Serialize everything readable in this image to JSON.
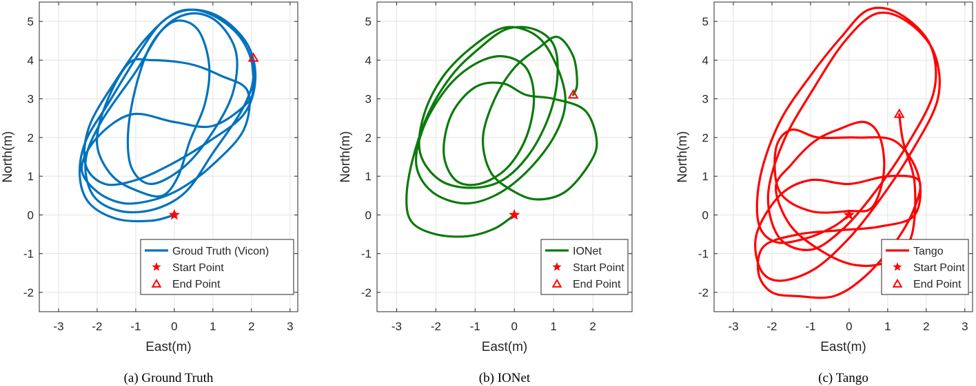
{
  "chart_data": [
    {
      "type": "line",
      "caption": "(a)  Ground Truth",
      "xlabel": "East(m)",
      "ylabel": "North(m)",
      "xlim": [
        -3.5,
        3.2
      ],
      "ylim": [
        -2.5,
        5.5
      ],
      "xticks": [
        -3,
        -2,
        -1,
        0,
        1,
        2,
        3
      ],
      "yticks": [
        -2,
        -1,
        0,
        1,
        2,
        3,
        4,
        5
      ],
      "xtick_labels": [
        "-3",
        "-2",
        "-1",
        "0",
        "1",
        "2",
        "3"
      ],
      "ytick_labels": [
        "-2",
        "-1",
        "0",
        "1",
        "2",
        "3",
        "4",
        "5"
      ],
      "grid": true,
      "legend_position": "bottom-right",
      "legend": [
        "Groud Truth (Vicon)",
        "Start Point",
        "End Point"
      ],
      "series_color": "#0072BD",
      "marker_color": "#FF0000",
      "start_point": [
        0.0,
        0.0
      ],
      "end_point": [
        2.05,
        4.05
      ],
      "trajectory": [
        [
          0,
          0
        ],
        [
          -0.6,
          -0.15
        ],
        [
          -1.5,
          -0.1
        ],
        [
          -2.2,
          0.3
        ],
        [
          -2.45,
          1.0
        ],
        [
          -2.3,
          1.9
        ],
        [
          -1.7,
          2.9
        ],
        [
          -0.9,
          4.2
        ],
        [
          -0.3,
          5.0
        ],
        [
          0.4,
          5.3
        ],
        [
          1.2,
          5.1
        ],
        [
          1.9,
          4.4
        ],
        [
          2.1,
          3.5
        ],
        [
          1.8,
          2.6
        ],
        [
          0.9,
          1.9
        ],
        [
          -0.1,
          1.3
        ],
        [
          -1.0,
          0.9
        ],
        [
          -1.8,
          0.8
        ],
        [
          -2.3,
          1.3
        ],
        [
          -2.2,
          2.3
        ],
        [
          -1.5,
          3.5
        ],
        [
          -0.7,
          4.6
        ],
        [
          0.1,
          5.25
        ],
        [
          0.9,
          5.2
        ],
        [
          1.7,
          4.6
        ],
        [
          2.05,
          3.7
        ],
        [
          1.8,
          2.8
        ],
        [
          1.0,
          1.6
        ],
        [
          0.3,
          0.6
        ],
        [
          -0.5,
          0.15
        ],
        [
          -1.4,
          0.1
        ],
        [
          -2.1,
          0.5
        ],
        [
          -2.3,
          1.4
        ],
        [
          -1.9,
          2.4
        ],
        [
          -1.0,
          3.7
        ],
        [
          -0.3,
          4.8
        ],
        [
          0.4,
          5.2
        ],
        [
          1.1,
          5.0
        ],
        [
          1.6,
          4.2
        ],
        [
          1.5,
          3.1
        ],
        [
          0.9,
          2.0
        ],
        [
          0.2,
          1.2
        ],
        [
          -0.6,
          0.8
        ],
        [
          -1.1,
          1.2
        ],
        [
          -1.2,
          2.1
        ],
        [
          -1.0,
          3.3
        ],
        [
          -0.6,
          4.4
        ],
        [
          0.0,
          5.0
        ],
        [
          0.6,
          4.8
        ],
        [
          0.9,
          3.9
        ],
        [
          0.8,
          2.9
        ],
        [
          0.4,
          1.9
        ],
        [
          0.1,
          1.0
        ],
        [
          -0.3,
          0.5
        ],
        [
          -0.9,
          0.6
        ],
        [
          -1.6,
          1.0
        ],
        [
          -2.0,
          1.8
        ],
        [
          -1.8,
          2.8
        ],
        [
          -1.2,
          3.9
        ],
        [
          -0.6,
          4.0
        ],
        [
          0.4,
          3.9
        ],
        [
          1.2,
          3.6
        ],
        [
          1.9,
          3.2
        ],
        [
          1.8,
          2.2
        ],
        [
          1.0,
          1.3
        ],
        [
          0.2,
          0.7
        ],
        [
          -0.5,
          0.4
        ],
        [
          -1.3,
          0.3
        ],
        [
          -2.0,
          0.6
        ],
        [
          -2.4,
          1.2
        ],
        [
          -2.0,
          2.0
        ],
        [
          -1.1,
          2.6
        ],
        [
          0.0,
          2.4
        ],
        [
          1.0,
          2.3
        ],
        [
          1.9,
          2.9
        ],
        [
          2.05,
          3.4
        ],
        [
          2.0,
          4.05
        ]
      ]
    },
    {
      "type": "line",
      "caption": "(b)  IONet",
      "xlabel": "East(m)",
      "ylabel": "North(m)",
      "xlim": [
        -3.5,
        3.0
      ],
      "ylim": [
        -2.5,
        5.5
      ],
      "xticks": [
        -3,
        -2,
        -1,
        0,
        1,
        2
      ],
      "yticks": [
        -2,
        -1,
        0,
        1,
        2,
        3,
        4,
        5
      ],
      "xtick_labels": [
        "-3",
        "-2",
        "-1",
        "0",
        "1",
        "2"
      ],
      "ytick_labels": [
        "-2",
        "-1",
        "0",
        "1",
        "2",
        "3",
        "4",
        "5"
      ],
      "grid": true,
      "legend_position": "bottom-right",
      "legend": [
        "IONet",
        "Start Point",
        "End Point"
      ],
      "series_color": "#0B7A0B",
      "marker_color": "#FF0000",
      "start_point": [
        0.0,
        0.0
      ],
      "end_point": [
        1.5,
        3.1
      ],
      "trajectory": [
        [
          0,
          0
        ],
        [
          -0.5,
          -0.35
        ],
        [
          -1.2,
          -0.55
        ],
        [
          -2.0,
          -0.5
        ],
        [
          -2.6,
          -0.2
        ],
        [
          -2.75,
          0.4
        ],
        [
          -2.6,
          1.4
        ],
        [
          -2.2,
          2.6
        ],
        [
          -1.6,
          3.6
        ],
        [
          -0.9,
          4.3
        ],
        [
          -0.2,
          4.8
        ],
        [
          0.5,
          4.8
        ],
        [
          1.0,
          4.4
        ],
        [
          1.1,
          3.6
        ],
        [
          0.9,
          2.6
        ],
        [
          0.4,
          1.6
        ],
        [
          -0.3,
          0.9
        ],
        [
          -1.1,
          0.7
        ],
        [
          -1.9,
          0.9
        ],
        [
          -2.4,
          1.6
        ],
        [
          -2.3,
          2.6
        ],
        [
          -1.8,
          3.6
        ],
        [
          -1.0,
          4.4
        ],
        [
          -0.2,
          4.85
        ],
        [
          0.6,
          4.6
        ],
        [
          1.1,
          3.8
        ],
        [
          1.3,
          2.9
        ],
        [
          1.0,
          2.0
        ],
        [
          0.3,
          1.1
        ],
        [
          -0.5,
          0.5
        ],
        [
          -1.3,
          0.3
        ],
        [
          -2.1,
          0.6
        ],
        [
          -2.5,
          1.3
        ],
        [
          -2.3,
          2.3
        ],
        [
          -1.7,
          3.3
        ],
        [
          -1.0,
          3.9
        ],
        [
          -0.3,
          4.1
        ],
        [
          0.3,
          3.8
        ],
        [
          0.5,
          3.0
        ],
        [
          0.3,
          2.0
        ],
        [
          -0.2,
          1.2
        ],
        [
          -0.9,
          0.8
        ],
        [
          -1.5,
          0.9
        ],
        [
          -1.8,
          1.6
        ],
        [
          -1.6,
          2.6
        ],
        [
          -1.0,
          3.3
        ],
        [
          -0.3,
          3.4
        ],
        [
          0.3,
          3.1
        ],
        [
          1.0,
          3.0
        ],
        [
          1.8,
          2.7
        ],
        [
          2.1,
          1.9
        ],
        [
          1.9,
          1.3
        ],
        [
          1.3,
          0.6
        ],
        [
          0.6,
          0.4
        ],
        [
          0.0,
          0.6
        ],
        [
          -0.6,
          1.1
        ],
        [
          -0.8,
          2.0
        ],
        [
          -0.5,
          3.0
        ],
        [
          0.0,
          3.8
        ],
        [
          0.6,
          4.3
        ],
        [
          1.1,
          4.6
        ],
        [
          1.5,
          4.1
        ],
        [
          1.6,
          3.4
        ],
        [
          1.5,
          3.1
        ]
      ]
    },
    {
      "type": "line",
      "caption": "(c)  Tango",
      "xlabel": "East(m)",
      "ylabel": "North(m)",
      "xlim": [
        -3.5,
        3.2
      ],
      "ylim": [
        -2.5,
        5.5
      ],
      "xticks": [
        -3,
        -2,
        -1,
        0,
        1,
        2,
        3
      ],
      "yticks": [
        -2,
        -1,
        0,
        1,
        2,
        3,
        4,
        5
      ],
      "xtick_labels": [
        "-3",
        "-2",
        "-1",
        "0",
        "1",
        "2",
        "3"
      ],
      "ytick_labels": [
        "-2",
        "-1",
        "0",
        "1",
        "2",
        "3",
        "4",
        "5"
      ],
      "grid": true,
      "legend_position": "bottom-right",
      "legend": [
        "Tango",
        "Start Point",
        "End Point"
      ],
      "series_color": "#FF0000",
      "marker_color": "#FF0000",
      "start_point": [
        0.0,
        0.0
      ],
      "end_point": [
        1.3,
        2.6
      ],
      "trajectory": [
        [
          0,
          0
        ],
        [
          -0.4,
          -0.3
        ],
        [
          -1.1,
          -0.6
        ],
        [
          -1.9,
          -0.7
        ],
        [
          -2.35,
          -0.2
        ],
        [
          -2.3,
          1.0
        ],
        [
          -1.8,
          2.4
        ],
        [
          -1.0,
          3.6
        ],
        [
          -0.2,
          4.6
        ],
        [
          0.5,
          5.3
        ],
        [
          1.3,
          5.2
        ],
        [
          2.1,
          4.4
        ],
        [
          2.2,
          3.2
        ],
        [
          1.5,
          1.8
        ],
        [
          0.6,
          0.5
        ],
        [
          -0.2,
          -0.4
        ],
        [
          -1.0,
          -0.9
        ],
        [
          -1.8,
          -0.6
        ],
        [
          -2.1,
          0.5
        ],
        [
          -1.7,
          1.9
        ],
        [
          -0.9,
          3.3
        ],
        [
          -0.1,
          4.5
        ],
        [
          0.7,
          5.2
        ],
        [
          1.5,
          5.0
        ],
        [
          2.2,
          4.2
        ],
        [
          2.3,
          3.0
        ],
        [
          1.6,
          1.6
        ],
        [
          0.8,
          0.4
        ],
        [
          0.0,
          -0.6
        ],
        [
          -0.9,
          -1.4
        ],
        [
          -1.8,
          -1.7
        ],
        [
          -2.3,
          -1.4
        ],
        [
          -2.4,
          -0.5
        ],
        [
          -1.8,
          0.5
        ],
        [
          -1.0,
          0.9
        ],
        [
          0.0,
          0.8
        ],
        [
          1.0,
          1.0
        ],
        [
          1.8,
          0.9
        ],
        [
          1.7,
          0.2
        ],
        [
          1.2,
          -0.7
        ],
        [
          0.4,
          -1.6
        ],
        [
          -0.4,
          -2.1
        ],
        [
          -1.3,
          -2.1
        ],
        [
          -2.0,
          -2.0
        ],
        [
          -2.35,
          -1.5
        ],
        [
          -2.2,
          -0.8
        ],
        [
          -1.3,
          -0.5
        ],
        [
          -0.3,
          -0.4
        ],
        [
          0.8,
          -0.3
        ],
        [
          1.7,
          0.0
        ],
        [
          1.8,
          1.0
        ],
        [
          1.2,
          1.9
        ],
        [
          0.2,
          2.0
        ],
        [
          -0.8,
          2.0
        ],
        [
          -1.5,
          2.2
        ],
        [
          -1.9,
          1.7
        ],
        [
          -1.8,
          0.6
        ],
        [
          -1.0,
          0.1
        ],
        [
          0.0,
          0.1
        ],
        [
          0.6,
          0.2
        ],
        [
          0.9,
          1.1
        ],
        [
          0.8,
          2.0
        ],
        [
          0.4,
          2.4
        ],
        [
          -0.3,
          2.2
        ],
        [
          -0.9,
          1.9
        ],
        [
          -1.5,
          1.3
        ],
        [
          -1.9,
          0.7
        ],
        [
          -1.5,
          -0.3
        ],
        [
          -0.6,
          -1.0
        ],
        [
          0.2,
          -1.3
        ],
        [
          1.0,
          -1.2
        ],
        [
          1.6,
          -0.6
        ],
        [
          1.7,
          0.8
        ],
        [
          1.4,
          1.9
        ],
        [
          1.3,
          2.6
        ]
      ]
    }
  ]
}
